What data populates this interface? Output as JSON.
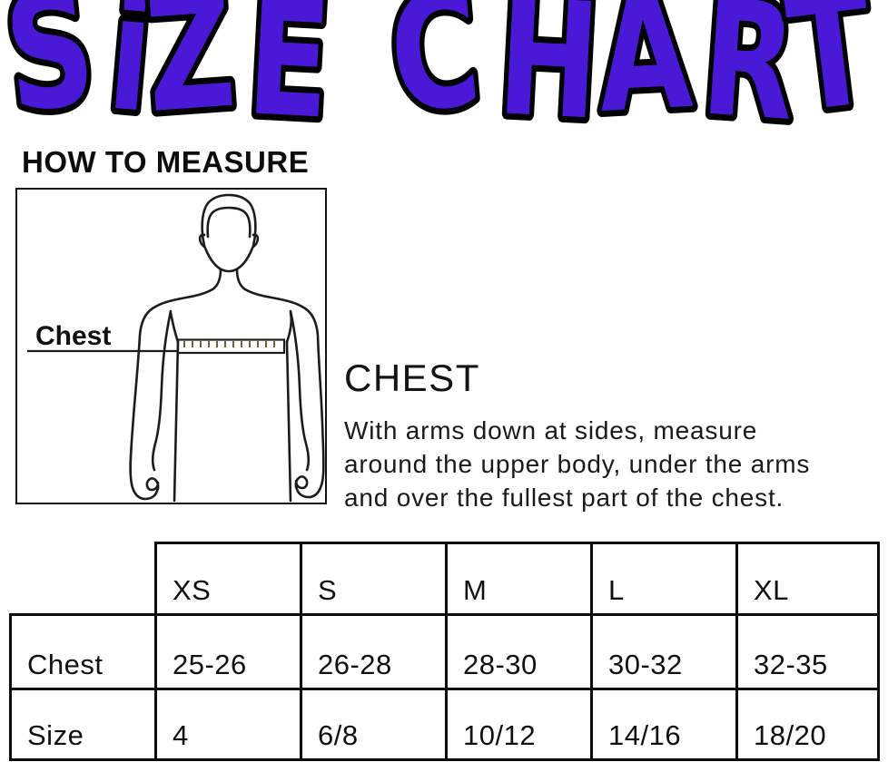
{
  "title": {
    "text": "SiZE CHART",
    "fill": "#4A19D8",
    "outline": "#000000"
  },
  "section_measure": {
    "heading": "HOW TO MEASURE"
  },
  "figure": {
    "label": "Chest",
    "tape_color": "#F2C51D"
  },
  "instructions": {
    "heading": "CHEST",
    "lines": [
      "With arms down at sides, measure",
      "around the upper body, under the arms",
      "and over the fullest part of the chest."
    ]
  },
  "size_table": {
    "columns": [
      "XS",
      "S",
      "M",
      "L",
      "XL"
    ],
    "rows": [
      {
        "label": "Chest",
        "values": [
          "25-26",
          "26-28",
          "28-30",
          "30-32",
          "32-35"
        ]
      },
      {
        "label": "Size",
        "values": [
          "4",
          "6/8",
          "10/12",
          "14/16",
          "18/20"
        ]
      }
    ]
  }
}
